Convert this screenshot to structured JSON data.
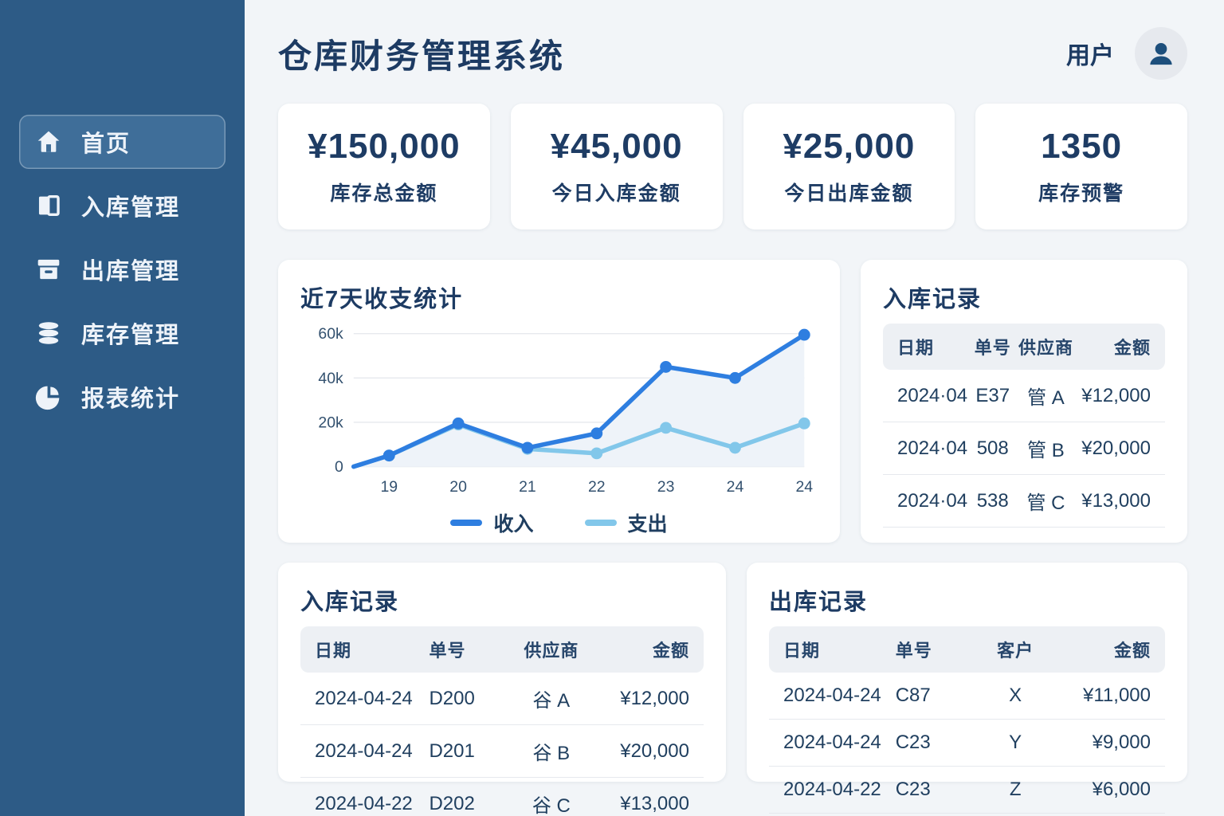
{
  "app": {
    "title": "仓库财务管理系统"
  },
  "user": {
    "label": "用户"
  },
  "colors": {
    "sidebar_bg": "#2d5b86",
    "sidebar_active_bg": "#3f6e99",
    "navy_text": "#1d3b63",
    "income_line": "#2e7ee0",
    "expense_line": "#82c7ea",
    "page_bg": "#f2f5f8",
    "table_header_bg": "#edf0f4",
    "area_fill": "#eef3f9"
  },
  "sidebar": {
    "items": [
      {
        "label": "首页",
        "icon": "home-icon",
        "active": true
      },
      {
        "label": "入库管理",
        "icon": "inbound-icon",
        "active": false
      },
      {
        "label": "出库管理",
        "icon": "outbound-icon",
        "active": false
      },
      {
        "label": "库存管理",
        "icon": "inventory-icon",
        "active": false
      },
      {
        "label": "报表统计",
        "icon": "reports-icon",
        "active": false
      }
    ]
  },
  "stats": [
    {
      "value": "¥150,000",
      "label": "库存总金额"
    },
    {
      "value": "¥45,000",
      "label": "今日入库金额"
    },
    {
      "value": "¥25,000",
      "label": "今日出库金额"
    },
    {
      "value": "1350",
      "label": "库存预警"
    }
  ],
  "chart_data": {
    "type": "line",
    "title": "近7天收支统计",
    "x": [
      "19",
      "20",
      "21",
      "22",
      "23",
      "24",
      "24"
    ],
    "series": [
      {
        "name": "收入",
        "color": "#2e7ee0",
        "values": [
          5000,
          19500,
          8500,
          15000,
          45000,
          40000,
          59500
        ]
      },
      {
        "name": "支出",
        "color": "#82c7ea",
        "values": [
          5000,
          19000,
          8000,
          6000,
          17500,
          8500,
          19500
        ]
      }
    ],
    "ylim": [
      0,
      60000
    ],
    "yticks": [
      {
        "v": 0,
        "label": "0"
      },
      {
        "v": 20000,
        "label": "20k"
      },
      {
        "v": 40000,
        "label": "40k"
      },
      {
        "v": 60000,
        "label": "60k"
      }
    ],
    "grid": true,
    "legend_position": "bottom",
    "starts_at_origin": true,
    "area_fill_under_income": true
  },
  "tables": {
    "inbound_recent": {
      "title": "入库记录",
      "headers": [
        "日期",
        "单号",
        "供应商",
        "金额"
      ],
      "rows": [
        [
          "2024·04",
          "E37",
          "管 A",
          "¥12,000"
        ],
        [
          "2024·04",
          "508",
          "管 B",
          "¥20,000"
        ],
        [
          "2024·04",
          "538",
          "管 C",
          "¥13,000"
        ]
      ]
    },
    "inbound_log": {
      "title": "入库记录",
      "headers": [
        "日期",
        "单号",
        "供应商",
        "金额"
      ],
      "rows": [
        [
          "2024-04-24",
          "D200",
          "谷 A",
          "¥12,000"
        ],
        [
          "2024-04-24",
          "D201",
          "谷 B",
          "¥20,000"
        ],
        [
          "2024-04-22",
          "D202",
          "谷 C",
          "¥13,000"
        ]
      ]
    },
    "outbound_log": {
      "title": "出库记录",
      "headers": [
        "日期",
        "单号",
        "客户",
        "金额"
      ],
      "rows": [
        [
          "2024-04-24",
          "C87",
          "X",
          "¥11,000"
        ],
        [
          "2024-04-24",
          "C23",
          "Y",
          "¥9,000"
        ],
        [
          "2024-04-22",
          "C23",
          "Z",
          "¥6,000"
        ]
      ]
    }
  }
}
